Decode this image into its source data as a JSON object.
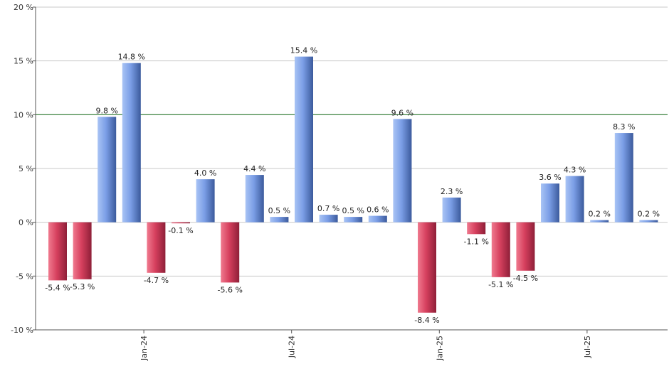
{
  "chart_data": {
    "type": "bar",
    "values": [
      -5.4,
      -5.3,
      9.8,
      14.8,
      -4.7,
      -0.1,
      4.0,
      -5.6,
      4.4,
      0.5,
      15.4,
      0.7,
      0.5,
      0.6,
      9.6,
      -8.4,
      2.3,
      -1.1,
      -5.1,
      -4.5,
      3.6,
      4.3,
      0.2,
      8.3,
      0.2
    ],
    "labels": [
      "-5.4 %",
      "-5.3 %",
      "9.8 %",
      "14.8 %",
      "-4.7 %",
      "-0.1 %",
      "4.0 %",
      "-5.6 %",
      "4.4 %",
      "0.5 %",
      "15.4 %",
      "0.7 %",
      "0.5 %",
      "0.6 %",
      "9.6 %",
      "-8.4 %",
      "2.3 %",
      "-1.1 %",
      "-5.1 %",
      "-4.5 %",
      "3.6 %",
      "4.3 %",
      "0.2 %",
      "8.3 %",
      "0.2 %"
    ],
    "ylim": [
      -10,
      20
    ],
    "y_ticks": [
      -10,
      -5,
      0,
      5,
      10,
      15,
      20
    ],
    "y_tick_labels": [
      "-10 %",
      "-5 %",
      "0 %",
      "5 %",
      "10 %",
      "15 %",
      "20 %"
    ],
    "x_ticks": [
      {
        "label": "Jan-24",
        "after_index": 3
      },
      {
        "label": "Jul-24",
        "after_index": 9
      },
      {
        "label": "Jan-25",
        "after_index": 15
      },
      {
        "label": "Jul-25",
        "after_index": 21
      }
    ],
    "reference_line": {
      "value": 10,
      "color": "#2e7d32"
    },
    "colors": {
      "positive": "#7b9ee6",
      "negative": "#d6405e",
      "grid": "#c8c8c8",
      "axis": "#555555"
    },
    "grid": true
  }
}
